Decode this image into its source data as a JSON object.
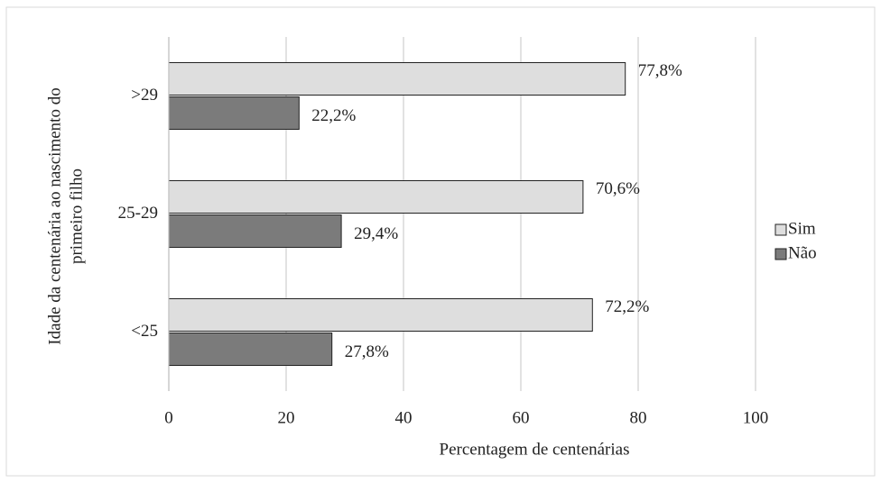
{
  "chart_data": {
    "type": "hbar",
    "categories": [
      "<25",
      "25-29",
      ">29"
    ],
    "series": [
      {
        "name": "Sim",
        "color": "#dedede",
        "values": [
          72.2,
          70.6,
          77.8
        ],
        "value_labels": [
          "72,2%",
          "70,6%",
          "77,8%"
        ]
      },
      {
        "name": "Não",
        "color": "#7b7b7b",
        "values": [
          27.8,
          29.4,
          22.2
        ],
        "value_labels": [
          "27,8%",
          "29,4%",
          "22,2%"
        ]
      }
    ],
    "xlabel": "Percentagem de centenárias",
    "ylabel": [
      "Idade da centenária ao nascimento do",
      "primeiro filho"
    ],
    "xlim": [
      0,
      100
    ],
    "xticks": [
      0,
      20,
      40,
      60,
      80,
      100
    ],
    "grid": true,
    "legend": "right"
  }
}
